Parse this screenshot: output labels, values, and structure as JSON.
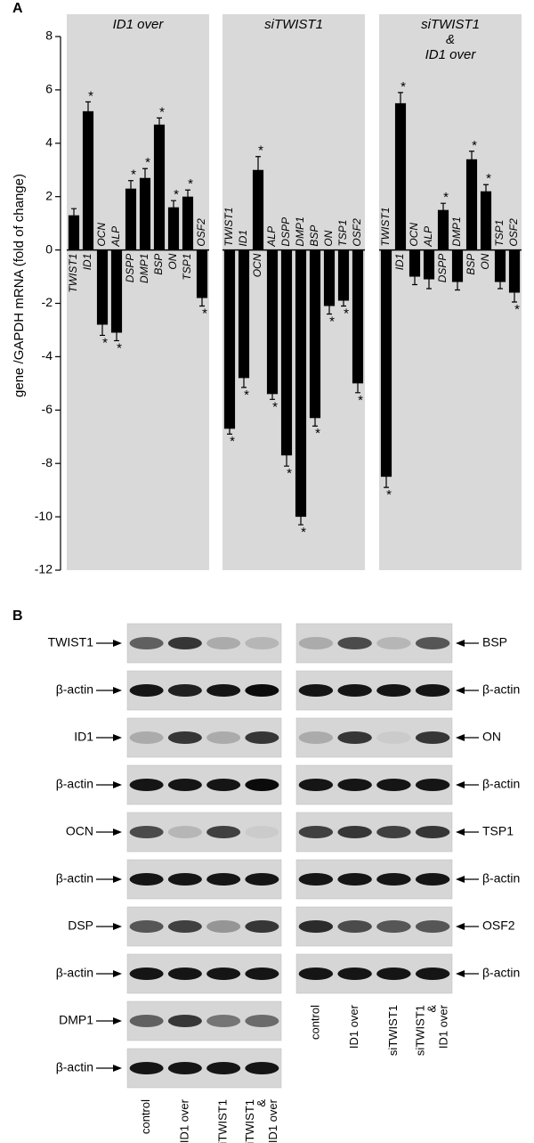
{
  "panel_a_label": "A",
  "chart_data": [
    {
      "type": "bar",
      "title": [
        "ID1 over"
      ],
      "ylabel": "gene /GAPDH mRNA (fold of change)",
      "categories": [
        "TWIST1",
        "ID1",
        "OCN",
        "ALP",
        "DSPP",
        "DMP1",
        "BSP",
        "ON",
        "TSP1",
        "OSF2"
      ],
      "values": [
        1.3,
        5.2,
        -2.8,
        -3.1,
        2.3,
        2.7,
        4.7,
        1.6,
        2.0,
        -1.8
      ],
      "errors": [
        0.25,
        0.35,
        0.4,
        0.3,
        0.3,
        0.35,
        0.25,
        0.25,
        0.25,
        0.3
      ],
      "significance": [
        null,
        "*",
        "*",
        "*",
        "*",
        "*",
        "*",
        "*",
        "*",
        "*"
      ],
      "color": "#000000",
      "background": "#d9d9d9",
      "ylim": [
        -12,
        8
      ],
      "yticks": [
        -12,
        -10,
        -8,
        -6,
        -4,
        -2,
        0,
        2,
        4,
        6,
        8
      ]
    },
    {
      "type": "bar",
      "title": [
        "siTWIST1"
      ],
      "categories": [
        "TWIST1",
        "ID1",
        "OCN",
        "ALP",
        "DSPP",
        "DMP1",
        "BSP",
        "ON",
        "TSP1",
        "OSF2"
      ],
      "values": [
        -6.7,
        -4.8,
        3.0,
        -5.4,
        -7.7,
        -10.0,
        -6.3,
        -2.1,
        -1.9,
        -5.0
      ],
      "errors": [
        0.2,
        0.35,
        0.5,
        0.2,
        0.4,
        0.3,
        0.3,
        0.3,
        0.2,
        0.35
      ],
      "significance": [
        "*",
        "*",
        "*",
        "*",
        "*",
        "*",
        "*",
        "*",
        "*",
        "*"
      ],
      "color": "#000000",
      "background": "#d9d9d9",
      "ylim": [
        -12,
        8
      ]
    },
    {
      "type": "bar",
      "title": [
        "siTWIST1",
        "&",
        "ID1 over"
      ],
      "categories": [
        "TWIST1",
        "ID1",
        "OCN",
        "ALP",
        "DSPP",
        "DMP1",
        "BSP",
        "ON",
        "TSP1",
        "OSF2"
      ],
      "values": [
        -8.5,
        5.5,
        -1.0,
        -1.1,
        1.5,
        -1.2,
        3.4,
        2.2,
        -1.2,
        -1.6
      ],
      "errors": [
        0.4,
        0.4,
        0.3,
        0.35,
        0.25,
        0.3,
        0.3,
        0.25,
        0.25,
        0.35
      ],
      "significance": [
        "*",
        "*",
        null,
        null,
        "*",
        null,
        "*",
        "*",
        null,
        "*"
      ],
      "color": "#000000",
      "background": "#d9d9d9",
      "ylim": [
        -12,
        8
      ]
    }
  ],
  "panel_b": {
    "label": "B",
    "left": {
      "blots": [
        {
          "label": "TWIST1",
          "bands": [
            0.55,
            0.75,
            0.2,
            0.15
          ]
        },
        {
          "label": "β-actin",
          "bands": [
            0.9,
            0.85,
            0.9,
            0.95
          ]
        },
        {
          "label": "ID1",
          "bands": [
            0.2,
            0.75,
            0.2,
            0.75
          ]
        },
        {
          "label": "β-actin",
          "bands": [
            0.9,
            0.9,
            0.9,
            0.95
          ]
        },
        {
          "label": "OCN",
          "bands": [
            0.65,
            0.15,
            0.7,
            0.05
          ]
        },
        {
          "label": "β-actin",
          "bands": [
            0.9,
            0.9,
            0.9,
            0.9
          ]
        },
        {
          "label": "DSP",
          "bands": [
            0.6,
            0.7,
            0.3,
            0.75
          ]
        },
        {
          "label": "β-actin",
          "bands": [
            0.9,
            0.9,
            0.9,
            0.9
          ]
        },
        {
          "label": "DMP1",
          "bands": [
            0.55,
            0.75,
            0.45,
            0.5
          ]
        },
        {
          "label": "β-actin",
          "bands": [
            0.9,
            0.9,
            0.9,
            0.9
          ]
        }
      ],
      "lanes": [
        [
          "control"
        ],
        [
          "ID1 over"
        ],
        [
          "siTWIST1"
        ],
        [
          "siTWIST1",
          "&",
          "ID1 over"
        ]
      ]
    },
    "right": {
      "blots": [
        {
          "label": "BSP",
          "bands": [
            0.2,
            0.65,
            0.15,
            0.6
          ]
        },
        {
          "label": "β-actin",
          "bands": [
            0.9,
            0.9,
            0.9,
            0.9
          ]
        },
        {
          "label": "ON",
          "bands": [
            0.2,
            0.75,
            0.05,
            0.75
          ]
        },
        {
          "label": "β-actin",
          "bands": [
            0.9,
            0.9,
            0.9,
            0.9
          ]
        },
        {
          "label": "TSP1",
          "bands": [
            0.7,
            0.75,
            0.7,
            0.75
          ]
        },
        {
          "label": "β-actin",
          "bands": [
            0.9,
            0.9,
            0.9,
            0.9
          ]
        },
        {
          "label": "OSF2",
          "bands": [
            0.8,
            0.65,
            0.6,
            0.6
          ]
        },
        {
          "label": "β-actin",
          "bands": [
            0.9,
            0.9,
            0.9,
            0.9
          ]
        }
      ],
      "lanes": [
        [
          "control"
        ],
        [
          "ID1 over"
        ],
        [
          "siTWIST1"
        ],
        [
          "siTWIST1",
          "&",
          "ID1 over"
        ]
      ]
    }
  }
}
